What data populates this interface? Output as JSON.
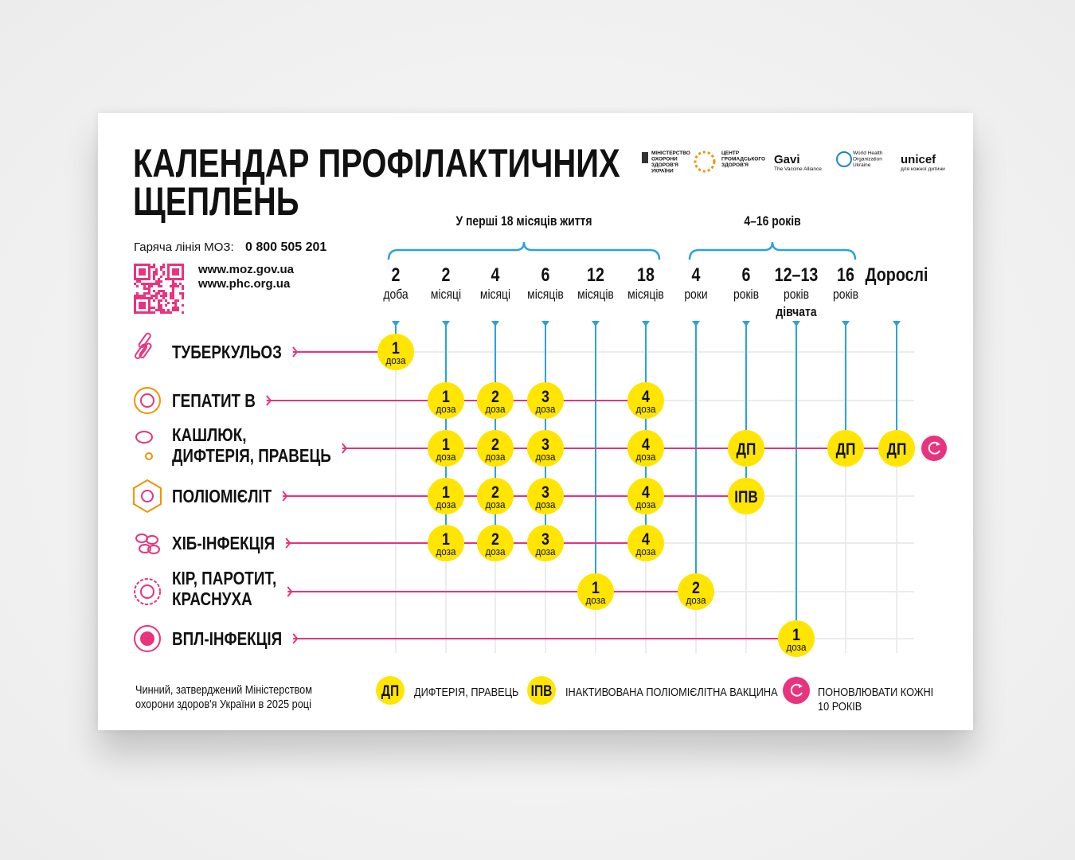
{
  "header": {
    "title": [
      "КАЛЕНДАР ПРОФІЛАКТИЧНИХ",
      "ЩЕПЛЕНЬ"
    ],
    "hotline_label": "Гаряча лінія МОЗ:",
    "hotline_number": "0 800 505 201",
    "links": [
      "www.moz.gov.ua",
      "www.phc.org.ua"
    ]
  },
  "logos": [
    [
      "МІНІСТЕРСТВО",
      "ОХОРОНИ",
      "ЗДОРОВ'Я",
      "УКРАЇНИ"
    ],
    [
      "ЦЕНТР",
      "ГРОМАДСЬКОГО",
      "ЗДОРОВ'Я"
    ],
    [
      "Gavi",
      "The Vaccine Alliance"
    ],
    [
      "World Health",
      "Organization",
      "Ukraine"
    ],
    [
      "unicef",
      "для кожної дитини"
    ]
  ],
  "groups": [
    "У перші 18 місяців життя",
    "4–16 років"
  ],
  "columns": [
    [
      "2",
      "доба"
    ],
    [
      "2",
      "місяці"
    ],
    [
      "4",
      "місяці"
    ],
    [
      "6",
      "місяців"
    ],
    [
      "12",
      "місяців"
    ],
    [
      "18",
      "місяців"
    ],
    [
      "4",
      "роки"
    ],
    [
      "6",
      "років"
    ],
    [
      "12–13",
      "років",
      "дівчата"
    ],
    [
      "16",
      "років"
    ],
    [
      "Дорослі"
    ]
  ],
  "rows": [
    {
      "name": [
        "ТУБЕРКУЛЬОЗ"
      ],
      "doses": [
        [
          "1",
          "доза"
        ],
        null,
        null,
        null,
        null,
        null,
        null,
        null,
        null,
        null,
        null
      ]
    },
    {
      "name": [
        "ГЕПАТИТ В"
      ],
      "doses": [
        null,
        [
          "1",
          "доза"
        ],
        [
          "2",
          "доза"
        ],
        [
          "3",
          "доза"
        ],
        null,
        [
          "4",
          "доза"
        ],
        null,
        null,
        null,
        null,
        null
      ]
    },
    {
      "name": [
        "КАШЛЮК,",
        "ДИФТЕРІЯ, ПРАВЕЦЬ"
      ],
      "doses": [
        null,
        [
          "1",
          "доза"
        ],
        [
          "2",
          "доза"
        ],
        [
          "3",
          "доза"
        ],
        null,
        [
          "4",
          "доза"
        ],
        null,
        "ДП",
        null,
        "ДП",
        "ДП"
      ]
    },
    {
      "name": [
        "ПОЛІОМІЄЛІТ"
      ],
      "doses": [
        null,
        [
          "1",
          "доза"
        ],
        [
          "2",
          "доза"
        ],
        [
          "3",
          "доза"
        ],
        null,
        [
          "4",
          "доза"
        ],
        null,
        "ІПВ",
        null,
        null,
        null
      ]
    },
    {
      "name": [
        "ХІБ-ІНФЕКЦІЯ"
      ],
      "doses": [
        null,
        [
          "1",
          "доза"
        ],
        [
          "2",
          "доза"
        ],
        [
          "3",
          "доза"
        ],
        null,
        [
          "4",
          "доза"
        ],
        null,
        null,
        null,
        null,
        null
      ]
    },
    {
      "name": [
        "КІР, ПАРОТИТ,",
        "КРАСНУХА"
      ],
      "doses": [
        null,
        null,
        null,
        null,
        [
          "1",
          "доза"
        ],
        null,
        [
          "2",
          "доза"
        ],
        null,
        null,
        null,
        null
      ]
    },
    {
      "name": [
        "ВПЛ-ІНФЕКЦІЯ"
      ],
      "doses": [
        null,
        null,
        null,
        null,
        null,
        null,
        null,
        null,
        [
          "1",
          "доза"
        ],
        null,
        null
      ]
    }
  ],
  "footer": {
    "note": [
      "Чинний, затверджений Міністерством",
      "охорони здоров'я України в 2025 році"
    ],
    "legend": [
      {
        "symbol": "ДП",
        "text": [
          "ДИФТЕРІЯ, ПРАВЕЦЬ"
        ]
      },
      {
        "symbol": "ІПВ",
        "text": [
          "ІНАКТИВОВАНА ПОЛІОМІЄЛІТНА ВАКЦИНА"
        ]
      },
      {
        "text": [
          "ПОНОВЛЮВАТИ КОЖНІ",
          "10 РОКІВ"
        ]
      }
    ]
  }
}
